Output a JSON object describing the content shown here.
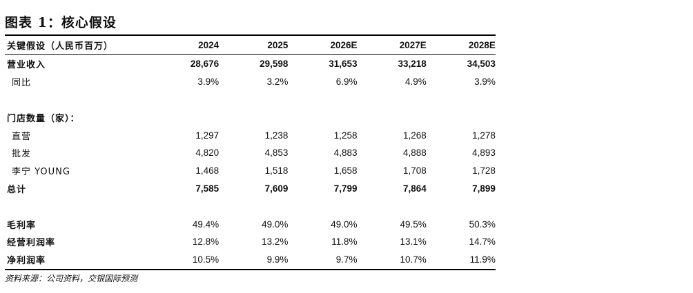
{
  "title": "图表 1：核心假设",
  "table": {
    "header_label": "关键假设（人民币百万）",
    "years": [
      "2024",
      "2025",
      "2026E",
      "2027E",
      "2028E"
    ],
    "rows": [
      {
        "label": "营业收入",
        "values": [
          "28,676",
          "29,598",
          "31,653",
          "33,218",
          "34,503"
        ],
        "bold": true
      },
      {
        "label": "同比",
        "values": [
          "3.9%",
          "3.2%",
          "6.9%",
          "4.9%",
          "3.9%"
        ],
        "bold": false
      },
      {
        "label": "门店数量（家）：",
        "values": [],
        "bold": true
      },
      {
        "label": "直营",
        "values": [
          "1,297",
          "1,238",
          "1,258",
          "1,268",
          "1,278"
        ],
        "bold": false
      },
      {
        "label": "批发",
        "values": [
          "4,820",
          "4,853",
          "4,883",
          "4,888",
          "4,893"
        ],
        "bold": false
      },
      {
        "label": "李宁 YOUNG",
        "values": [
          "1,468",
          "1,518",
          "1,658",
          "1,708",
          "1,728"
        ],
        "bold": false
      },
      {
        "label": "总计",
        "values": [
          "7,585",
          "7,609",
          "7,799",
          "7,864",
          "7,899"
        ],
        "bold": true
      },
      {
        "label": "毛利率",
        "values": [
          "49.4%",
          "49.0%",
          "49.0%",
          "49.5%",
          "50.3%"
        ],
        "bold": true
      },
      {
        "label": "经营利润率",
        "values": [
          "12.8%",
          "13.2%",
          "11.8%",
          "13.1%",
          "14.7%"
        ],
        "bold": true
      },
      {
        "label": "净利润率",
        "values": [
          "10.5%",
          "9.9%",
          "9.7%",
          "10.7%",
          "11.9%"
        ],
        "bold": true
      }
    ]
  },
  "source": "资料来源：公司资料，交银国际预测"
}
